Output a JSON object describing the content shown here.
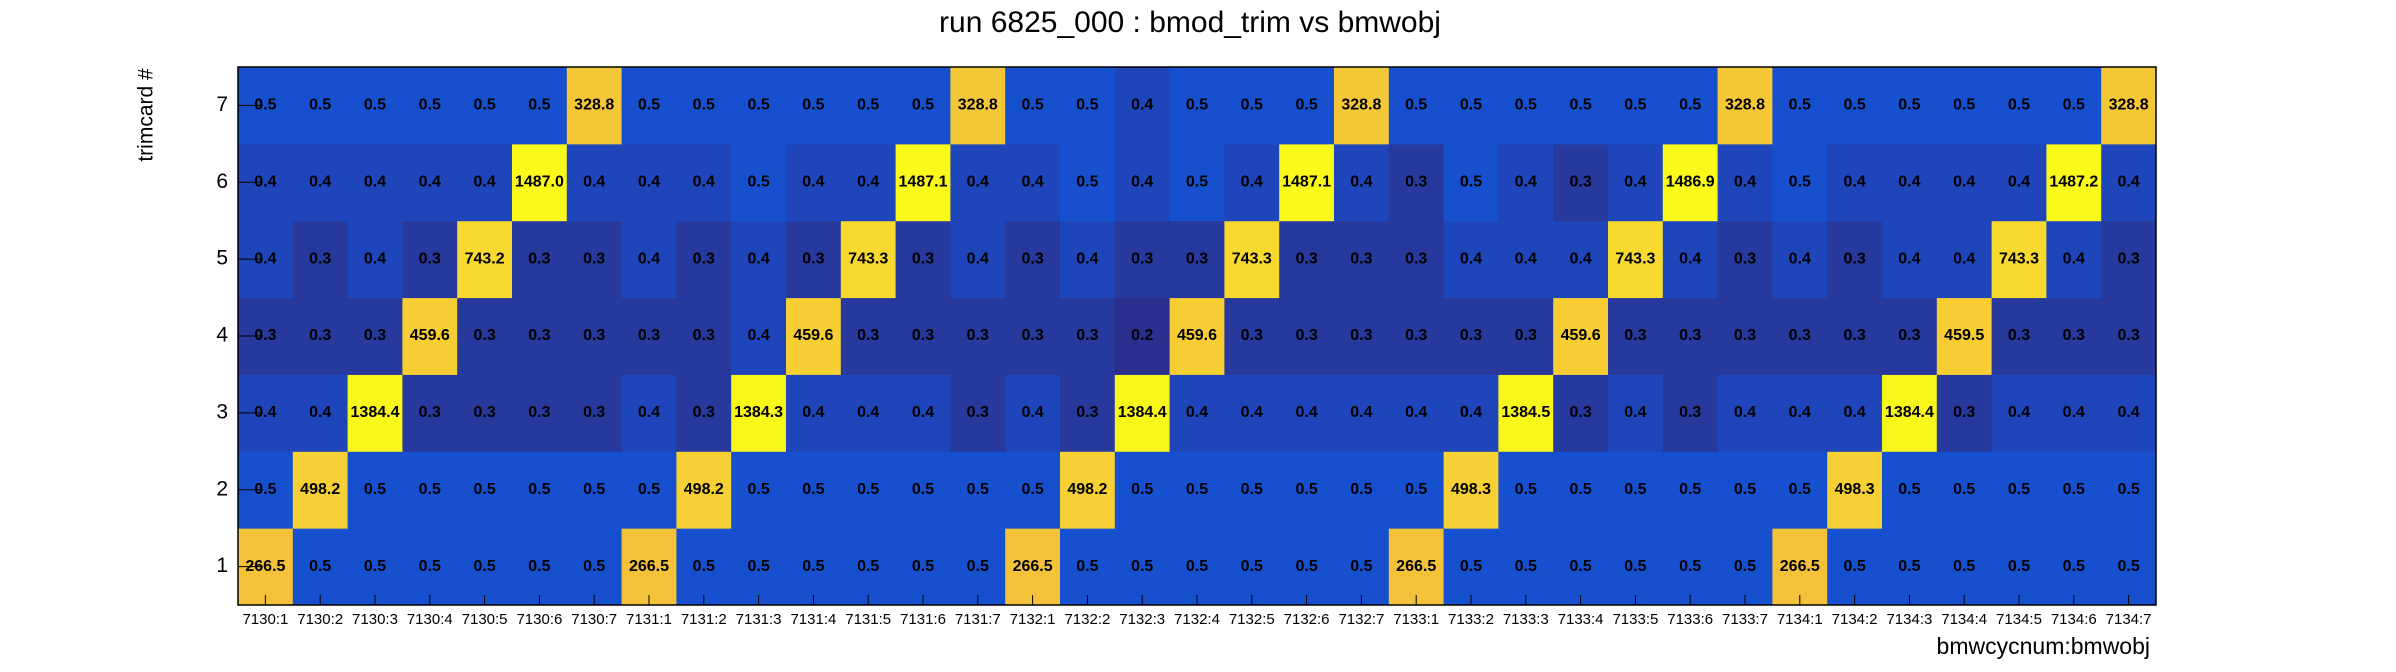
{
  "chart_data": {
    "type": "heatmap",
    "title": "run 6825_000 : bmod_trim vs bmwobj",
    "x_label": "bmwcycnum:bmwobj",
    "y_label": "trimcard #",
    "log_z": true,
    "x_categories": [
      "7130:1",
      "7130:2",
      "7130:3",
      "7130:4",
      "7130:5",
      "7130:6",
      "7130:7",
      "7131:1",
      "7131:2",
      "7131:3",
      "7131:4",
      "7131:5",
      "7131:6",
      "7131:7",
      "7132:1",
      "7132:2",
      "7132:3",
      "7132:4",
      "7132:5",
      "7132:6",
      "7132:7",
      "7133:1",
      "7133:2",
      "7133:3",
      "7133:4",
      "7133:5",
      "7133:6",
      "7133:7",
      "7134:1",
      "7134:2",
      "7134:3",
      "7134:4",
      "7134:5",
      "7134:6",
      "7134:7"
    ],
    "y_categories": [
      "1",
      "2",
      "3",
      "4",
      "5",
      "6",
      "7"
    ],
    "z": [
      [
        266.5,
        0.5,
        0.5,
        0.5,
        0.5,
        0.5,
        0.5,
        266.5,
        0.5,
        0.5,
        0.5,
        0.5,
        0.5,
        0.5,
        266.5,
        0.5,
        0.5,
        0.5,
        0.5,
        0.5,
        0.5,
        266.5,
        0.5,
        0.5,
        0.5,
        0.5,
        0.5,
        0.5,
        266.5,
        0.5,
        0.5,
        0.5,
        0.5,
        0.5,
        0.5
      ],
      [
        0.5,
        498.2,
        0.5,
        0.5,
        0.5,
        0.5,
        0.5,
        0.5,
        498.2,
        0.5,
        0.5,
        0.5,
        0.5,
        0.5,
        0.5,
        498.2,
        0.5,
        0.5,
        0.5,
        0.5,
        0.5,
        0.5,
        498.3,
        0.5,
        0.5,
        0.5,
        0.5,
        0.5,
        0.5,
        498.3,
        0.5,
        0.5,
        0.5,
        0.5,
        0.5
      ],
      [
        0.4,
        0.4,
        1384.4,
        0.3,
        0.3,
        0.3,
        0.3,
        0.4,
        0.3,
        1384.3,
        0.4,
        0.4,
        0.4,
        0.3,
        0.4,
        0.3,
        1384.4,
        0.4,
        0.4,
        0.4,
        0.4,
        0.4,
        0.4,
        1384.5,
        0.3,
        0.4,
        0.3,
        0.4,
        0.4,
        0.4,
        1384.4,
        0.3,
        0.4,
        0.4,
        0.4
      ],
      [
        0.3,
        0.3,
        0.3,
        459.6,
        0.3,
        0.3,
        0.3,
        0.3,
        0.3,
        0.4,
        459.6,
        0.3,
        0.3,
        0.3,
        0.3,
        0.3,
        0.2,
        459.6,
        0.3,
        0.3,
        0.3,
        0.3,
        0.3,
        0.3,
        459.6,
        0.3,
        0.3,
        0.3,
        0.3,
        0.3,
        0.3,
        459.5,
        0.3,
        0.3,
        0.3
      ],
      [
        0.4,
        0.3,
        0.4,
        0.3,
        743.2,
        0.3,
        0.3,
        0.4,
        0.3,
        0.4,
        0.3,
        743.3,
        0.3,
        0.4,
        0.3,
        0.4,
        0.3,
        0.3,
        743.3,
        0.3,
        0.3,
        0.3,
        0.4,
        0.4,
        0.4,
        743.3,
        0.4,
        0.3,
        0.4,
        0.3,
        0.4,
        0.4,
        743.3,
        0.4,
        0.3
      ],
      [
        0.4,
        0.4,
        0.4,
        0.4,
        0.4,
        1487.0,
        0.4,
        0.4,
        0.4,
        0.5,
        0.4,
        0.4,
        1487.1,
        0.4,
        0.4,
        0.5,
        0.4,
        0.5,
        0.4,
        1487.1,
        0.4,
        0.3,
        0.5,
        0.4,
        0.3,
        0.4,
        1486.9,
        0.4,
        0.5,
        0.4,
        0.4,
        0.4,
        0.4,
        1487.2,
        0.4
      ],
      [
        0.5,
        0.5,
        0.5,
        0.5,
        0.5,
        0.5,
        328.8,
        0.5,
        0.5,
        0.5,
        0.5,
        0.5,
        0.5,
        328.8,
        0.5,
        0.5,
        0.4,
        0.5,
        0.5,
        0.5,
        328.8,
        0.5,
        0.5,
        0.5,
        0.5,
        0.5,
        0.5,
        328.8,
        0.5,
        0.5,
        0.5,
        0.5,
        0.5,
        0.5,
        328.8
      ]
    ],
    "value_labels": [
      [
        "266.5",
        "0.5",
        "0.5",
        "0.5",
        "0.5",
        "0.5",
        "0.5",
        "266.5",
        "0.5",
        "0.5",
        "0.5",
        "0.5",
        "0.5",
        "0.5",
        "266.5",
        "0.5",
        "0.5",
        "0.5",
        "0.5",
        "0.5",
        "0.5",
        "266.5",
        "0.5",
        "0.5",
        "0.5",
        "0.5",
        "0.5",
        "0.5",
        "266.5",
        "0.5",
        "0.5",
        "0.5",
        "0.5",
        "0.5",
        "0.5"
      ],
      [
        "0.5",
        "498.2",
        "0.5",
        "0.5",
        "0.5",
        "0.5",
        "0.5",
        "0.5",
        "498.2",
        "0.5",
        "0.5",
        "0.5",
        "0.5",
        "0.5",
        "0.5",
        "498.2",
        "0.5",
        "0.5",
        "0.5",
        "0.5",
        "0.5",
        "0.5",
        "498.3",
        "0.5",
        "0.5",
        "0.5",
        "0.5",
        "0.5",
        "0.5",
        "498.3",
        "0.5",
        "0.5",
        "0.5",
        "0.5",
        "0.5"
      ],
      [
        "0.4",
        "0.4",
        "1384.4",
        "0.3",
        "0.3",
        "0.3",
        "0.3",
        "0.4",
        "0.3",
        "1384.3",
        "0.4",
        "0.4",
        "0.4",
        "0.3",
        "0.4",
        "0.3",
        "1384.4",
        "0.4",
        "0.4",
        "0.4",
        "0.4",
        "0.4",
        "0.4",
        "1384.5",
        "0.3",
        "0.4",
        "0.3",
        "0.4",
        "0.4",
        "0.4",
        "1384.4",
        "0.3",
        "0.4",
        "0.4",
        "0.4"
      ],
      [
        "0.3",
        "0.3",
        "0.3",
        "459.6",
        "0.3",
        "0.3",
        "0.3",
        "0.3",
        "0.3",
        "0.4",
        "459.6",
        "0.3",
        "0.3",
        "0.3",
        "0.3",
        "0.3",
        "0.2",
        "459.6",
        "0.3",
        "0.3",
        "0.3",
        "0.3",
        "0.3",
        "0.3",
        "459.6",
        "0.3",
        "0.3",
        "0.3",
        "0.3",
        "0.3",
        "0.3",
        "459.5",
        "0.3",
        "0.3",
        "0.3"
      ],
      [
        "0.4",
        "0.3",
        "0.4",
        "0.3",
        "743.2",
        "0.3",
        "0.3",
        "0.4",
        "0.3",
        "0.4",
        "0.3",
        "743.3",
        "0.3",
        "0.4",
        "0.3",
        "0.4",
        "0.3",
        "0.3",
        "743.3",
        "0.3",
        "0.3",
        "0.3",
        "0.4",
        "0.4",
        "0.4",
        "743.3",
        "0.4",
        "0.3",
        "0.4",
        "0.3",
        "0.4",
        "0.4",
        "743.3",
        "0.4",
        "0.3"
      ],
      [
        "0.4",
        "0.4",
        "0.4",
        "0.4",
        "0.4",
        "1487.0",
        "0.4",
        "0.4",
        "0.4",
        "0.5",
        "0.4",
        "0.4",
        "1487.1",
        "0.4",
        "0.4",
        "0.5",
        "0.4",
        "0.5",
        "0.4",
        "1487.1",
        "0.4",
        "0.3",
        "0.5",
        "0.4",
        "0.3",
        "0.4",
        "1486.9",
        "0.4",
        "0.5",
        "0.4",
        "0.4",
        "0.4",
        "0.4",
        "1487.2",
        "0.4"
      ],
      [
        "0.5",
        "0.5",
        "0.5",
        "0.5",
        "0.5",
        "0.5",
        "328.8",
        "0.5",
        "0.5",
        "0.5",
        "0.5",
        "0.5",
        "0.5",
        "328.8",
        "0.5",
        "0.5",
        "0.4",
        "0.5",
        "0.5",
        "0.5",
        "328.8",
        "0.5",
        "0.5",
        "0.5",
        "0.5",
        "0.5",
        "0.5",
        "328.8",
        "0.5",
        "0.5",
        "0.5",
        "0.5",
        "0.5",
        "0.5",
        "328.8"
      ]
    ]
  }
}
